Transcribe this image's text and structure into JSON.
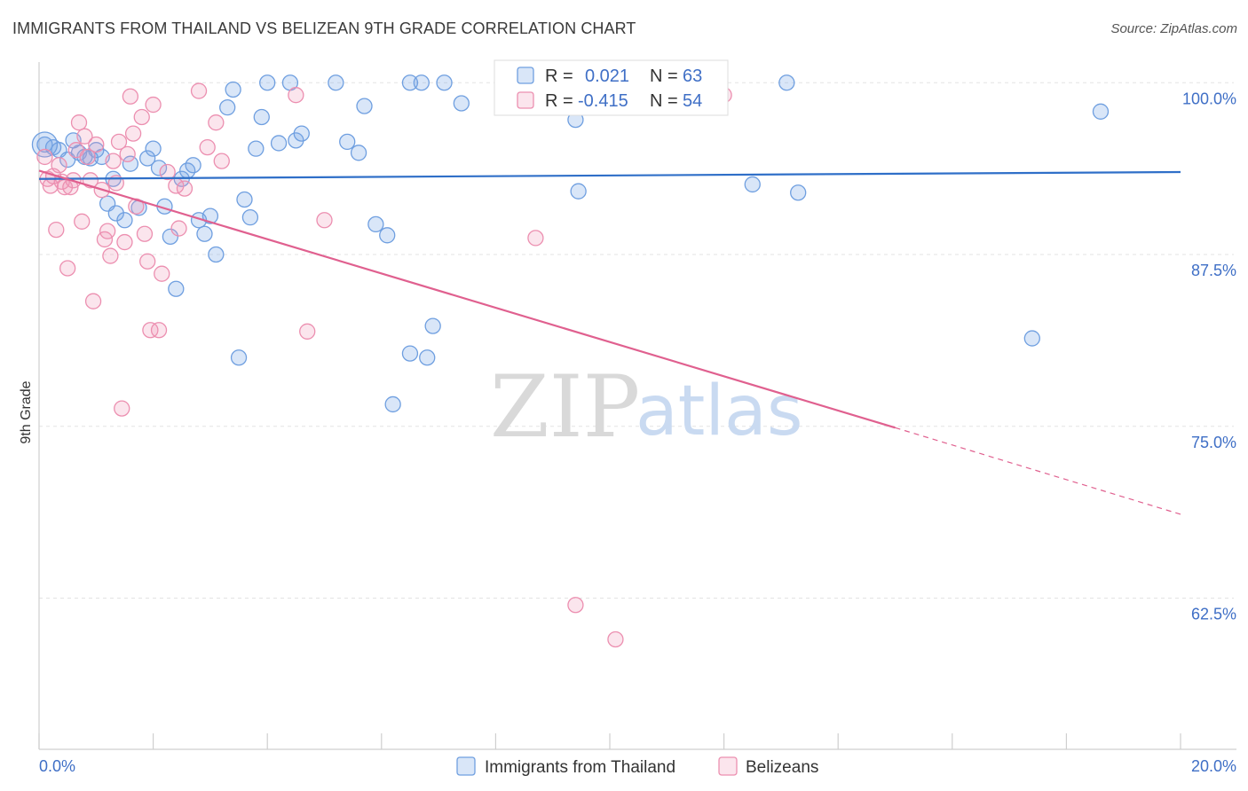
{
  "header": {
    "title": "IMMIGRANTS FROM THAILAND VS BELIZEAN 9TH GRADE CORRELATION CHART",
    "source": "Source: ZipAtlas.com"
  },
  "colors": {
    "blue": "#6f9fe0",
    "blue_fill": "rgba(120,165,230,0.28)",
    "blue_line": "#2f6fc8",
    "pink": "#ec8fb0",
    "pink_fill": "rgba(240,150,185,0.25)",
    "pink_line": "#e0608f",
    "label_blue": "#3f6fc6"
  },
  "legend": {
    "r_label": "R =",
    "n_label": "N =",
    "series1": {
      "r": "0.021",
      "n": "63"
    },
    "series2": {
      "r": "-0.415",
      "n": "54"
    }
  },
  "watermark": {
    "zip": "ZIP",
    "atlas": "atlas"
  },
  "chart_data": {
    "type": "scatter",
    "title": "IMMIGRANTS FROM THAILAND VS BELIZEAN 9TH GRADE CORRELATION CHART",
    "ylabel": "9th Grade",
    "xlabel": "",
    "xlim": [
      0,
      20
    ],
    "ylim": [
      51.5,
      101.5
    ],
    "x_tick_labels": [
      "0.0%",
      "20.0%"
    ],
    "y_ticks": [
      62.5,
      75.0,
      87.5,
      100.0
    ],
    "y_tick_labels": [
      "62.5%",
      "75.0%",
      "87.5%",
      "100.0%"
    ],
    "grid": true,
    "legend_position": "top-center",
    "series": [
      {
        "name": "Immigrants from Thailand",
        "r": 0.021,
        "n": 63,
        "trend": {
          "x": [
            0,
            20
          ],
          "y": [
            93.0,
            93.5
          ]
        },
        "points": [
          [
            0.1,
            95.5
          ],
          [
            0.25,
            95.3
          ],
          [
            0.35,
            95.1
          ],
          [
            0.5,
            94.4
          ],
          [
            0.7,
            94.9
          ],
          [
            0.9,
            94.5
          ],
          [
            1.1,
            94.6
          ],
          [
            1.3,
            93.0
          ],
          [
            1.2,
            91.2
          ],
          [
            1.35,
            90.5
          ],
          [
            1.5,
            90.0
          ],
          [
            1.6,
            94.1
          ],
          [
            1.75,
            90.9
          ],
          [
            1.9,
            94.5
          ],
          [
            2.0,
            95.2
          ],
          [
            2.1,
            93.8
          ],
          [
            2.2,
            91.0
          ],
          [
            2.3,
            88.8
          ],
          [
            2.4,
            85.0
          ],
          [
            2.5,
            93.0
          ],
          [
            2.6,
            93.6
          ],
          [
            2.8,
            90.0
          ],
          [
            2.9,
            89.0
          ],
          [
            3.0,
            90.3
          ],
          [
            3.1,
            87.5
          ],
          [
            3.3,
            98.2
          ],
          [
            3.4,
            99.5
          ],
          [
            3.5,
            80.0
          ],
          [
            3.7,
            90.2
          ],
          [
            3.6,
            91.5
          ],
          [
            3.8,
            95.2
          ],
          [
            3.9,
            97.5
          ],
          [
            4.0,
            100.0
          ],
          [
            4.2,
            95.6
          ],
          [
            4.4,
            100.0
          ],
          [
            4.5,
            95.8
          ],
          [
            4.6,
            96.3
          ],
          [
            5.2,
            100.0
          ],
          [
            5.4,
            95.7
          ],
          [
            5.6,
            94.9
          ],
          [
            5.7,
            98.3
          ],
          [
            5.9,
            89.7
          ],
          [
            6.1,
            88.9
          ],
          [
            6.2,
            76.6
          ],
          [
            6.5,
            100.0
          ],
          [
            6.7,
            100.0
          ],
          [
            6.5,
            80.3
          ],
          [
            6.8,
            80.0
          ],
          [
            6.9,
            82.3
          ],
          [
            7.1,
            100.0
          ],
          [
            7.4,
            98.5
          ],
          [
            9.4,
            97.3
          ],
          [
            9.45,
            92.1
          ],
          [
            11.9,
            100.0
          ],
          [
            12.5,
            92.6
          ],
          [
            13.1,
            100.0
          ],
          [
            13.3,
            92.0
          ],
          [
            17.4,
            81.4
          ],
          [
            18.6,
            97.9
          ],
          [
            0.6,
            95.8
          ],
          [
            1.0,
            95.1
          ],
          [
            0.8,
            94.6
          ],
          [
            2.7,
            94.0
          ]
        ]
      },
      {
        "name": "Belizeans",
        "r": -0.415,
        "n": 54,
        "trend": {
          "x": [
            0,
            15
          ],
          "y": [
            93.6,
            74.9
          ]
        },
        "trend_dashed": {
          "x": [
            15,
            20
          ],
          "y": [
            74.9,
            68.6
          ]
        },
        "points": [
          [
            0.1,
            94.6
          ],
          [
            0.15,
            93.0
          ],
          [
            0.2,
            92.5
          ],
          [
            0.3,
            89.3
          ],
          [
            0.4,
            92.8
          ],
          [
            0.45,
            92.4
          ],
          [
            0.5,
            86.5
          ],
          [
            0.6,
            92.9
          ],
          [
            0.65,
            95.1
          ],
          [
            0.7,
            97.1
          ],
          [
            0.75,
            89.9
          ],
          [
            0.8,
            96.1
          ],
          [
            0.85,
            94.6
          ],
          [
            0.9,
            92.9
          ],
          [
            1.0,
            95.5
          ],
          [
            0.95,
            84.1
          ],
          [
            1.1,
            92.2
          ],
          [
            1.15,
            88.6
          ],
          [
            1.2,
            89.2
          ],
          [
            1.25,
            87.4
          ],
          [
            1.3,
            94.3
          ],
          [
            1.35,
            92.7
          ],
          [
            1.4,
            95.7
          ],
          [
            1.45,
            76.3
          ],
          [
            1.5,
            88.4
          ],
          [
            1.55,
            94.8
          ],
          [
            1.6,
            99.0
          ],
          [
            1.65,
            96.3
          ],
          [
            1.7,
            91.0
          ],
          [
            1.8,
            97.5
          ],
          [
            1.85,
            89.0
          ],
          [
            1.9,
            87.0
          ],
          [
            1.95,
            82.0
          ],
          [
            2.0,
            98.4
          ],
          [
            2.1,
            82.0
          ],
          [
            2.15,
            86.1
          ],
          [
            2.25,
            93.5
          ],
          [
            2.4,
            92.5
          ],
          [
            2.45,
            89.4
          ],
          [
            2.55,
            92.3
          ],
          [
            2.8,
            99.4
          ],
          [
            2.95,
            95.3
          ],
          [
            3.1,
            97.1
          ],
          [
            3.2,
            94.3
          ],
          [
            4.5,
            99.1
          ],
          [
            4.7,
            81.9
          ],
          [
            5.0,
            90.0
          ],
          [
            8.7,
            88.7
          ],
          [
            9.4,
            62.0
          ],
          [
            10.1,
            59.5
          ],
          [
            12.0,
            99.1
          ],
          [
            0.35,
            94.0
          ],
          [
            0.55,
            92.4
          ],
          [
            0.25,
            93.2
          ]
        ]
      }
    ]
  }
}
